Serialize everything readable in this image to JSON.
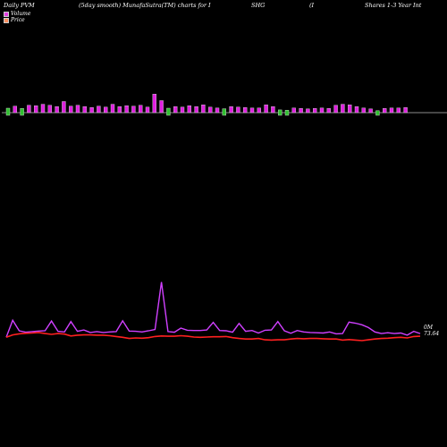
{
  "header": {
    "title": "Daily PVM",
    "desc": "(5day smooth) MunafaSutra(TM) charts for I",
    "ticker": "SHG",
    "paren": "(I",
    "name": "Shares 1-3 Year Int"
  },
  "legend": [
    {
      "label": "Volume",
      "color": "#e040e0"
    },
    {
      "label": "Price",
      "color": "#ff9060"
    }
  ],
  "colors": {
    "up": "#e020e0",
    "down": "#30c030",
    "smooth": "#ff2020",
    "price": "#d040ff"
  },
  "chart_data": {
    "type": "line",
    "title": "",
    "volume": {
      "bars": [
        {
          "v": 1.6,
          "dir": "down"
        },
        {
          "v": 1.4,
          "dir": "up"
        },
        {
          "v": 1.5,
          "dir": "down"
        },
        {
          "v": 1.6,
          "dir": "up"
        },
        {
          "v": 1.5,
          "dir": "up"
        },
        {
          "v": 1.8,
          "dir": "up"
        },
        {
          "v": 1.6,
          "dir": "up"
        },
        {
          "v": 1.3,
          "dir": "up"
        },
        {
          "v": 2.4,
          "dir": "up"
        },
        {
          "v": 1.4,
          "dir": "up"
        },
        {
          "v": 1.6,
          "dir": "up"
        },
        {
          "v": 1.3,
          "dir": "up"
        },
        {
          "v": 1.1,
          "dir": "up"
        },
        {
          "v": 1.4,
          "dir": "up"
        },
        {
          "v": 1.2,
          "dir": "up"
        },
        {
          "v": 1.8,
          "dir": "up"
        },
        {
          "v": 1.3,
          "dir": "up"
        },
        {
          "v": 1.5,
          "dir": "up"
        },
        {
          "v": 1.4,
          "dir": "up"
        },
        {
          "v": 1.6,
          "dir": "up"
        },
        {
          "v": 1.2,
          "dir": "up"
        },
        {
          "v": 4.0,
          "dir": "up"
        },
        {
          "v": 2.6,
          "dir": "up"
        },
        {
          "v": 1.6,
          "dir": "down"
        },
        {
          "v": 1.3,
          "dir": "up"
        },
        {
          "v": 1.2,
          "dir": "up"
        },
        {
          "v": 1.5,
          "dir": "up"
        },
        {
          "v": 1.3,
          "dir": "up"
        },
        {
          "v": 1.7,
          "dir": "up"
        },
        {
          "v": 1.2,
          "dir": "up"
        },
        {
          "v": 1.0,
          "dir": "up"
        },
        {
          "v": 1.4,
          "dir": "down"
        },
        {
          "v": 1.3,
          "dir": "up"
        },
        {
          "v": 1.2,
          "dir": "up"
        },
        {
          "v": 1.1,
          "dir": "up"
        },
        {
          "v": 1.0,
          "dir": "up"
        },
        {
          "v": 1.0,
          "dir": "up"
        },
        {
          "v": 1.7,
          "dir": "up"
        },
        {
          "v": 1.3,
          "dir": "up"
        },
        {
          "v": 1.0,
          "dir": "down"
        },
        {
          "v": 0.9,
          "dir": "down"
        },
        {
          "v": 1.0,
          "dir": "up"
        },
        {
          "v": 0.9,
          "dir": "up"
        },
        {
          "v": 0.8,
          "dir": "up"
        },
        {
          "v": 0.9,
          "dir": "up"
        },
        {
          "v": 1.0,
          "dir": "up"
        },
        {
          "v": 0.9,
          "dir": "up"
        },
        {
          "v": 1.6,
          "dir": "up"
        },
        {
          "v": 1.8,
          "dir": "up"
        },
        {
          "v": 1.7,
          "dir": "up"
        },
        {
          "v": 1.3,
          "dir": "up"
        },
        {
          "v": 1.0,
          "dir": "up"
        },
        {
          "v": 0.8,
          "dir": "up"
        },
        {
          "v": 0.7,
          "dir": "down"
        },
        {
          "v": 0.9,
          "dir": "up"
        },
        {
          "v": 1.0,
          "dir": "up"
        },
        {
          "v": 1.0,
          "dir": "up"
        },
        {
          "v": 1.1,
          "dir": "up"
        }
      ]
    },
    "price_line": [
      73.2,
      79.5,
      75.6,
      75.1,
      75.3,
      75.5,
      75.6,
      79.2,
      75.4,
      75.2,
      79.0,
      75.4,
      75.9,
      75.0,
      75.3,
      75.0,
      75.2,
      75.3,
      79.3,
      75.5,
      75.4,
      75.2,
      75.6,
      76.1,
      93.5,
      75.3,
      75.1,
      76.6,
      75.8,
      75.7,
      75.7,
      75.9,
      78.7,
      75.7,
      75.6,
      75.1,
      78.3,
      75.4,
      75.7,
      74.8,
      75.8,
      75.9,
      79.0,
      75.6,
      74.7,
      75.7,
      75.2,
      75.0,
      74.9,
      74.8,
      75.2,
      74.5,
      74.6,
      78.8,
      78.4,
      77.8,
      76.8,
      75.2,
      74.6,
      74.9,
      74.6,
      74.8,
      74.0,
      75.4,
      74.6
    ],
    "smooth_line": [
      73.2,
      74.1,
      74.5,
      74.7,
      74.8,
      75.0,
      74.6,
      74.3,
      74.6,
      74.4,
      73.7,
      74.0,
      74.1,
      74.1,
      74.0,
      74.0,
      73.8,
      73.5,
      73.2,
      72.8,
      73.0,
      72.9,
      73.1,
      73.5,
      73.7,
      73.6,
      73.6,
      73.8,
      73.6,
      73.3,
      73.2,
      73.3,
      73.4,
      73.4,
      73.5,
      73.1,
      72.8,
      72.6,
      72.6,
      72.8,
      72.3,
      72.2,
      72.3,
      72.3,
      72.6,
      72.8,
      72.7,
      72.8,
      72.8,
      72.7,
      72.6,
      72.6,
      72.2,
      72.4,
      72.2,
      72.0,
      72.3,
      72.6,
      72.8,
      72.9,
      73.1,
      73.2,
      73.0,
      73.5,
      73.6
    ],
    "labels": {
      "top": "0M",
      "price": "73.64"
    }
  }
}
